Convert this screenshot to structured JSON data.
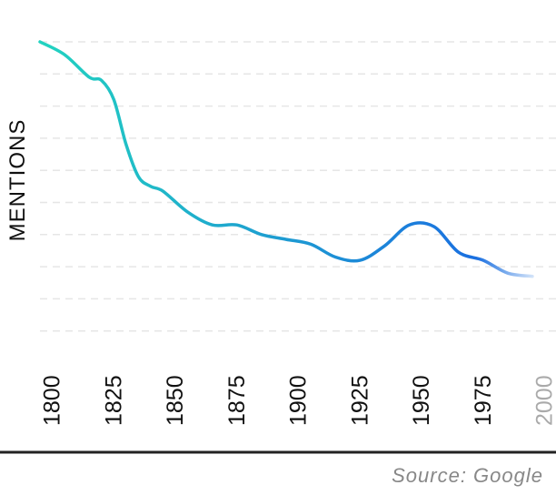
{
  "chart_data": {
    "type": "line",
    "y_label": "MENTIONS",
    "source": "Source: Google",
    "x": [
      1800,
      1810,
      1820,
      1825,
      1830,
      1835,
      1840,
      1845,
      1850,
      1860,
      1870,
      1880,
      1890,
      1900,
      1910,
      1920,
      1930,
      1940,
      1950,
      1960,
      1970,
      1980,
      1990,
      2000
    ],
    "series": [
      {
        "name": "Mentions",
        "color": [
          "#22d3c0",
          "#1a6fe0"
        ],
        "values": [
          10.0,
          9.6,
          8.9,
          8.8,
          8.2,
          6.8,
          5.8,
          5.5,
          5.35,
          4.7,
          4.3,
          4.3,
          4.0,
          3.85,
          3.7,
          3.3,
          3.2,
          3.65,
          4.3,
          4.25,
          3.45,
          3.2,
          2.8,
          2.7
        ]
      }
    ],
    "xlim": [
      1800,
      2000
    ],
    "xticks": [
      1800,
      1825,
      1850,
      1875,
      1900,
      1925,
      1950,
      1975,
      2000
    ],
    "ylim": [
      0,
      10
    ],
    "yticks": [
      1,
      2,
      3,
      4,
      5,
      6,
      7,
      8,
      9,
      10
    ],
    "grid": true
  }
}
